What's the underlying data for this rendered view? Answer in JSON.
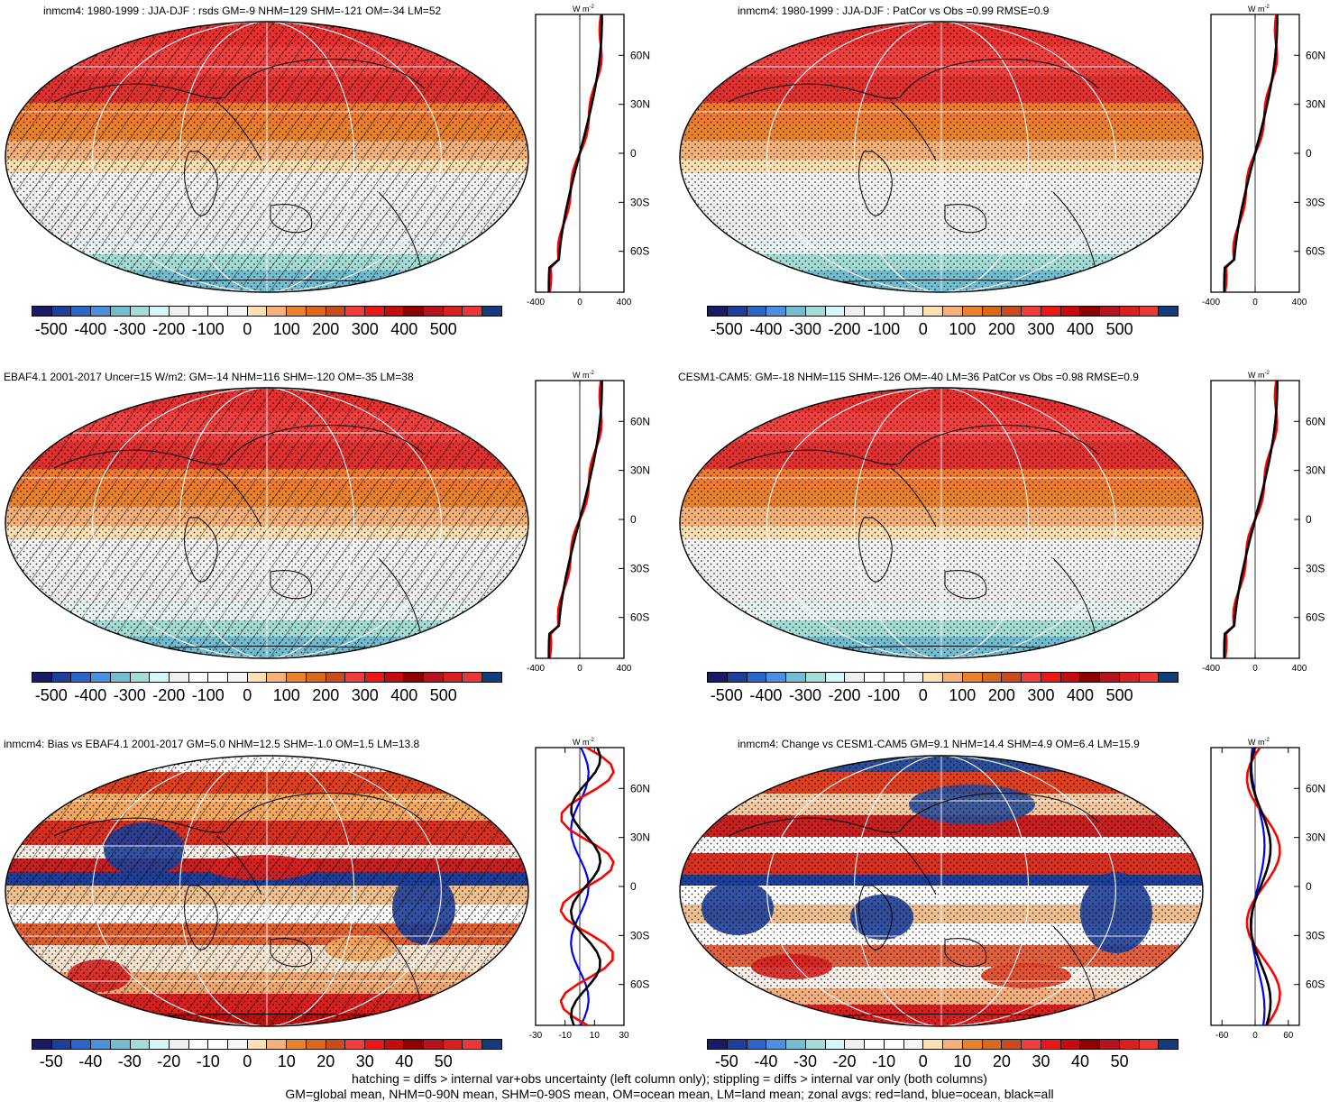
{
  "panels": [
    {
      "title": "inmcm4: 1980-1999 : JJA-DJF : rsds GM=-9 NHM=129 SHM=-121 OM=-34 LM=52",
      "map_style": "seasonal",
      "hatch": true,
      "zonal_unit_base": "W m",
      "zonal_unit_exp": "-2",
      "zonal_xticks": [
        "-400",
        "0",
        "400"
      ],
      "zonal_xrange": [
        -400,
        400
      ],
      "lat_labels": [
        "60N",
        "30N",
        "0",
        "30S",
        "60S"
      ],
      "cbar_labels": [
        "-500",
        "-400",
        "-300",
        "-200",
        "-100",
        "0",
        "100",
        "200",
        "300",
        "400",
        "500"
      ]
    },
    {
      "title": "inmcm4: 1980-1999 : JJA-DJF : PatCor vs Obs =0.99 RMSE=0.9",
      "map_style": "seasonal",
      "hatch": false,
      "zonal_unit_base": "W m",
      "zonal_unit_exp": "-2",
      "zonal_xticks": [
        "-400",
        "0",
        "400"
      ],
      "zonal_xrange": [
        -400,
        400
      ],
      "lat_labels": [
        "60N",
        "30N",
        "0",
        "30S",
        "60S"
      ],
      "cbar_labels": [
        "-500",
        "-400",
        "-300",
        "-200",
        "-100",
        "0",
        "100",
        "200",
        "300",
        "400",
        "500"
      ]
    },
    {
      "title": "EBAF4.1 2001-2017 Uncer=15 W/m2: GM=-14 NHM=116 SHM=-120 OM=-35 LM=38",
      "map_style": "seasonal",
      "hatch": true,
      "zonal_unit_base": "W m",
      "zonal_unit_exp": "-2",
      "zonal_xticks": [
        "-400",
        "0",
        "400"
      ],
      "zonal_xrange": [
        -400,
        400
      ],
      "lat_labels": [
        "60N",
        "30N",
        "0",
        "30S",
        "60S"
      ],
      "cbar_labels": [
        "-500",
        "-400",
        "-300",
        "-200",
        "-100",
        "0",
        "100",
        "200",
        "300",
        "400",
        "500"
      ]
    },
    {
      "title": "CESM1-CAM5: GM=-18 NHM=115 SHM=-126 OM=-40 LM=36 PatCor vs Obs =0.98 RMSE=0.9",
      "map_style": "seasonal",
      "hatch": false,
      "zonal_unit_base": "W m",
      "zonal_unit_exp": "-2",
      "zonal_xticks": [
        "-400",
        "0",
        "400"
      ],
      "zonal_xrange": [
        -400,
        400
      ],
      "lat_labels": [
        "60N",
        "30N",
        "0",
        "30S",
        "60S"
      ],
      "cbar_labels": [
        "-500",
        "-400",
        "-300",
        "-200",
        "-100",
        "0",
        "100",
        "200",
        "300",
        "400",
        "500"
      ]
    },
    {
      "title": "inmcm4: Bias vs EBAF4.1 2001-2017 GM=5.0 NHM=12.5 SHM=-1.0 OM=1.5 LM=13.8",
      "map_style": "bias",
      "hatch": true,
      "zonal_unit_base": "W m",
      "zonal_unit_exp": "-2",
      "zonal_xticks": [
        "-30",
        "-10",
        "10",
        "30"
      ],
      "zonal_xrange": [
        -30,
        30
      ],
      "lat_labels": [
        "60N",
        "30N",
        "0",
        "30S",
        "60S"
      ],
      "cbar_labels": [
        "-50",
        "-40",
        "-30",
        "-20",
        "-10",
        "0",
        "10",
        "20",
        "30",
        "40",
        "50"
      ]
    },
    {
      "title": "inmcm4: Change vs CESM1-CAM5 GM=9.1 NHM=14.4 SHM=4.9 OM=6.4 LM=15.9",
      "map_style": "change",
      "hatch": false,
      "zonal_unit_base": "W m",
      "zonal_unit_exp": "-2",
      "zonal_xticks": [
        "-60",
        "0",
        "60"
      ],
      "zonal_xrange": [
        -80,
        80
      ],
      "lat_labels": [
        "60N",
        "30N",
        "0",
        "30S",
        "60S"
      ],
      "cbar_labels": [
        "-50",
        "-40",
        "-30",
        "-20",
        "-10",
        "0",
        "10",
        "20",
        "30",
        "40",
        "50"
      ]
    }
  ],
  "colorbar_colors": [
    "#1a1a66",
    "#1d3f9a",
    "#2a66c8",
    "#4a90dc",
    "#74bdd0",
    "#a6dcd6",
    "#d4f6f6",
    "#f0f0f0",
    "#ffffff",
    "#ffffff",
    "#f6f6f6",
    "#fde0b4",
    "#f4b27a",
    "#e8822e",
    "#d8681c",
    "#c84c1c",
    "#f03c3c",
    "#e81818",
    "#c40c0c",
    "#8c0000",
    "#b4141e",
    "#d82020",
    "#e83838",
    "#123c7c"
  ],
  "legend": {
    "zonal_colors": {
      "land": "#ff0000",
      "ocean": "#0000ff",
      "all": "#000000"
    }
  },
  "footnote": {
    "line1": "hatching = diffs > internal var+obs uncertainty (left column only); stippling = diffs > internal var only (both columns)",
    "line2": "GM=global mean, NHM=0-90N mean, SHM=0-90S mean, OM=ocean mean, LM=land mean; zonal avgs: red=land, blue=ocean, black=all"
  }
}
